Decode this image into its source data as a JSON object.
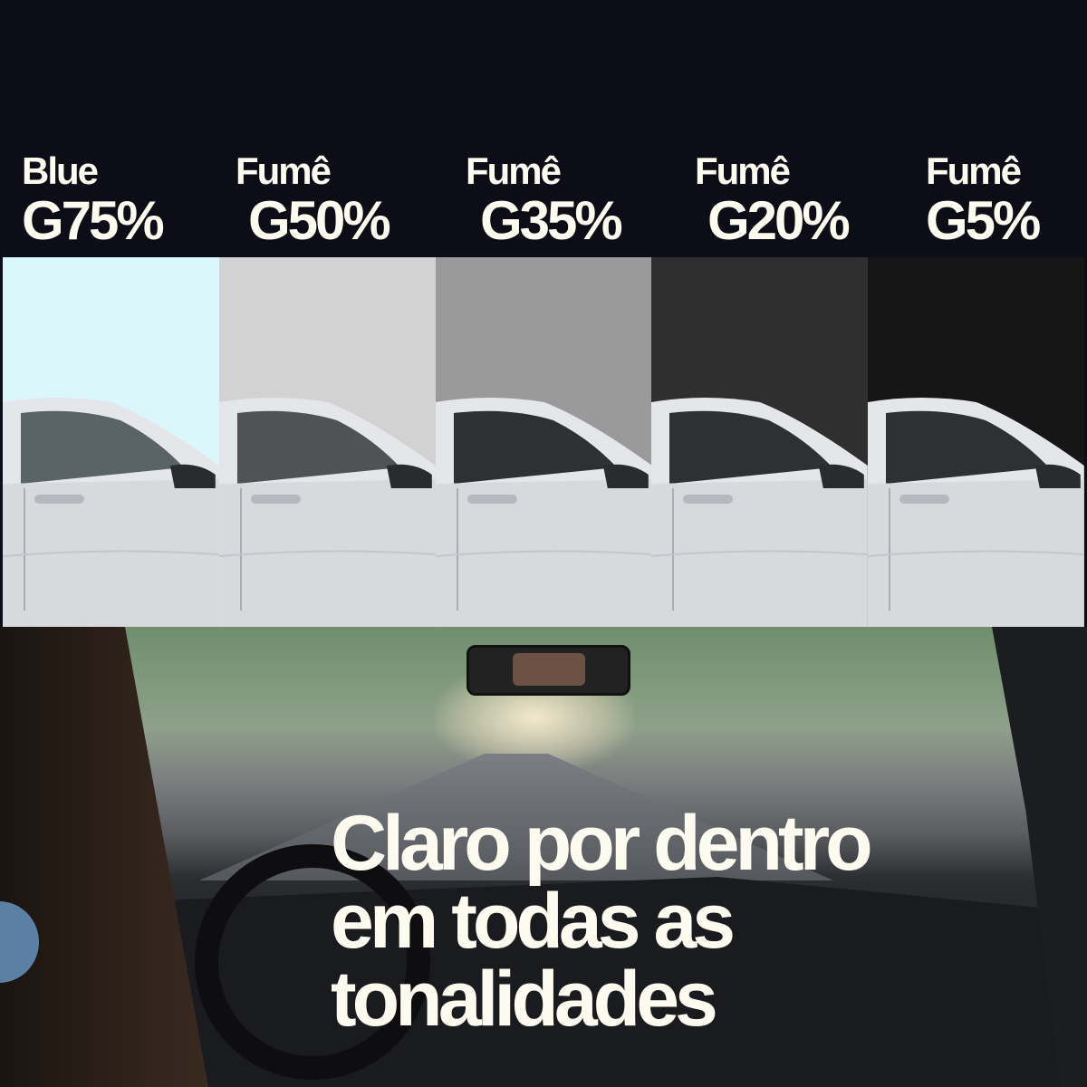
{
  "tints": [
    {
      "type": "Blue",
      "grade": "G75%",
      "color": "#dbf7fb"
    },
    {
      "type": "Fumê",
      "grade": "G50%",
      "color": "#d2d2d2"
    },
    {
      "type": "Fumê",
      "grade": "G35%",
      "color": "#9a9a9a"
    },
    {
      "type": "Fumê",
      "grade": "G20%",
      "color": "#2f2f2f"
    },
    {
      "type": "Fumê",
      "grade": "G5%",
      "color": "#161616"
    }
  ],
  "headline": {
    "line1": "Claro por dentro",
    "line2": "em todas as",
    "line3": "tonalidades"
  },
  "colors": {
    "background": "#0c0d16",
    "text": "#fdfbef",
    "accent_dot": "#5c7fa6"
  }
}
